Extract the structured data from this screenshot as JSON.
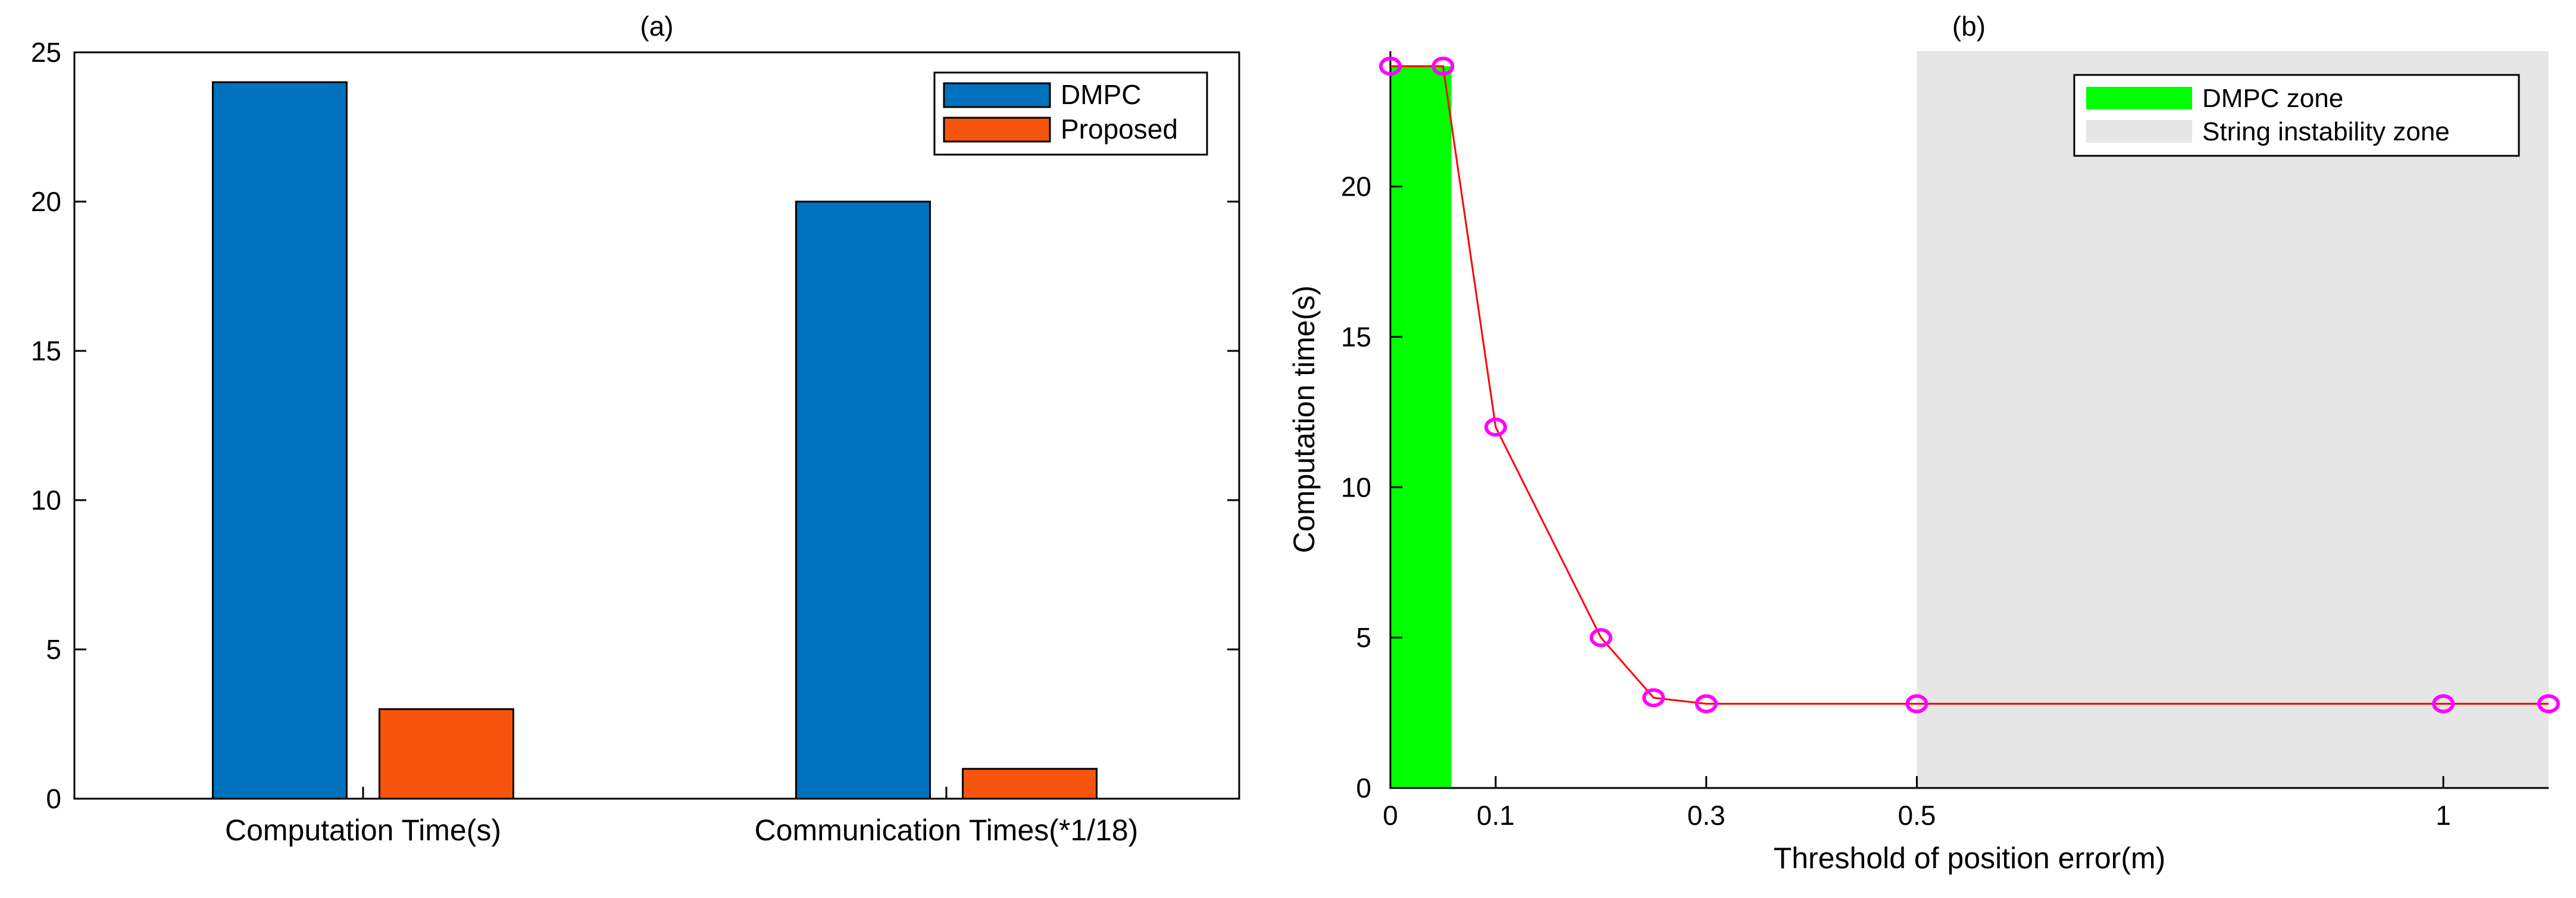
{
  "chart_data": [
    {
      "type": "bar",
      "title": "(a)",
      "xlabel": "",
      "ylabel": "",
      "categories": [
        "Computation Time(s)",
        "Communication Times(*1/18)"
      ],
      "series": [
        {
          "name": "DMPC",
          "color": "#0072bd",
          "values": [
            24,
            20
          ]
        },
        {
          "name": "Proposed",
          "color": "#f7540e",
          "values": [
            3,
            1
          ]
        }
      ],
      "ylim": [
        0,
        25
      ],
      "yticks": [
        "0",
        "5",
        "10",
        "15",
        "20",
        "25"
      ],
      "legend_position": "top-right",
      "grid": false
    },
    {
      "type": "line",
      "title": "(b)",
      "xlabel": "Threshold of position error(m)",
      "ylabel": "Computation time(s)",
      "xlim": [
        0,
        1.1
      ],
      "ylim": [
        0,
        24.5
      ],
      "xticks": [
        "0",
        "0.1",
        "0.3",
        "0.5",
        "1"
      ],
      "yticks": [
        "0",
        "5",
        "10",
        "15",
        "20"
      ],
      "series": [
        {
          "name": "Computation time",
          "color": "#ff0000",
          "marker_color": "#ff00ff",
          "x": [
            0,
            0.05,
            0.1,
            0.2,
            0.25,
            0.3,
            0.5,
            1.0,
            1.1
          ],
          "y": [
            24,
            24,
            12,
            5,
            3,
            2.8,
            2.8,
            2.8,
            2.8
          ]
        }
      ],
      "zones": [
        {
          "name": "DMPC zone",
          "color": "#00ff00",
          "x_range": [
            0,
            0.058
          ],
          "y_range": [
            0,
            24
          ]
        },
        {
          "name": "String instability zone",
          "color": "#e6e6e6",
          "x_range": [
            0.5,
            1.1
          ],
          "y_range": [
            0,
            24.5
          ]
        }
      ],
      "legend_position": "top-right",
      "grid": false
    }
  ]
}
